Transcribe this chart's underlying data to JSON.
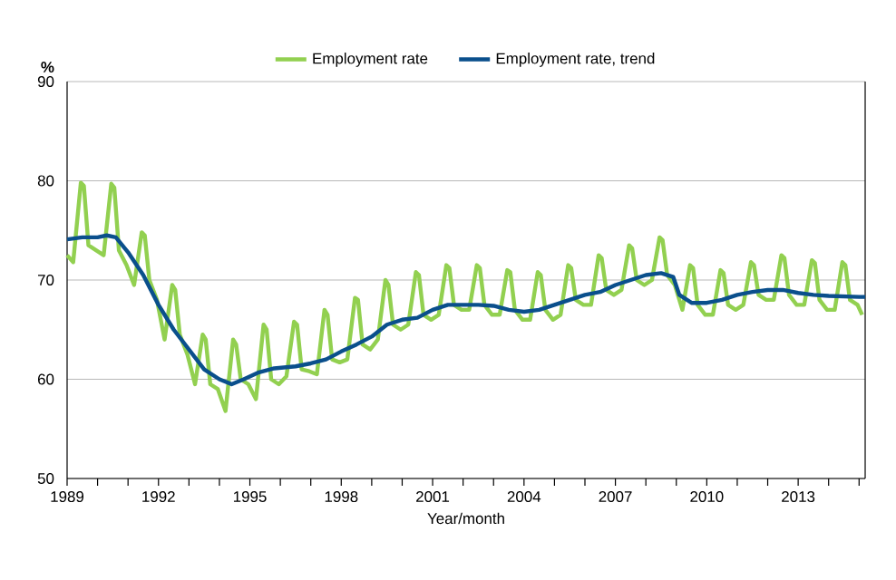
{
  "chart_data": {
    "type": "line",
    "xlabel": "Year/month",
    "ylabel": "%",
    "legend": "top",
    "grid": "y",
    "line_style": "solid",
    "marker": "none",
    "xlim": [
      1989,
      2015.2
    ],
    "ylim": [
      50,
      90
    ],
    "yticks": [
      50,
      60,
      70,
      80,
      90
    ],
    "xticks": [
      1989,
      {
        "value": 1990,
        "label": null
      },
      {
        "value": 1991,
        "label": null
      },
      1992,
      {
        "value": 1993,
        "label": null
      },
      {
        "value": 1994,
        "label": null
      },
      1995,
      {
        "value": 1996,
        "label": null
      },
      {
        "value": 1997,
        "label": null
      },
      1998,
      {
        "value": 1999,
        "label": null
      },
      {
        "value": 2000,
        "label": null
      },
      2001,
      {
        "value": 2002,
        "label": null
      },
      {
        "value": 2003,
        "label": null
      },
      2004,
      {
        "value": 2005,
        "label": null
      },
      {
        "value": 2006,
        "label": null
      },
      2007,
      {
        "value": 2008,
        "label": null
      },
      {
        "value": 2009,
        "label": null
      },
      2010,
      {
        "value": 2011,
        "label": null
      },
      {
        "value": 2012,
        "label": null
      },
      2013,
      {
        "value": 2014,
        "label": null
      },
      {
        "value": 2015,
        "label": null
      }
    ],
    "series": [
      {
        "name": "Employment rate",
        "color": "#92d050",
        "x": [
          1989.0,
          1989.2,
          1989.45,
          1989.55,
          1989.7,
          1989.95,
          1990.2,
          1990.45,
          1990.55,
          1990.7,
          1990.95,
          1991.2,
          1991.45,
          1991.55,
          1991.7,
          1991.95,
          1992.2,
          1992.45,
          1992.55,
          1992.7,
          1992.95,
          1993.2,
          1993.45,
          1993.55,
          1993.7,
          1993.95,
          1994.2,
          1994.45,
          1994.55,
          1994.7,
          1994.95,
          1995.2,
          1995.45,
          1995.55,
          1995.7,
          1995.95,
          1996.2,
          1996.45,
          1996.55,
          1996.7,
          1996.95,
          1997.2,
          1997.45,
          1997.55,
          1997.7,
          1997.95,
          1998.2,
          1998.45,
          1998.55,
          1998.7,
          1998.95,
          1999.2,
          1999.45,
          1999.55,
          1999.7,
          1999.95,
          2000.2,
          2000.45,
          2000.55,
          2000.7,
          2000.95,
          2001.2,
          2001.45,
          2001.55,
          2001.7,
          2001.95,
          2002.2,
          2002.45,
          2002.55,
          2002.7,
          2002.95,
          2003.2,
          2003.45,
          2003.55,
          2003.7,
          2003.95,
          2004.2,
          2004.45,
          2004.55,
          2004.7,
          2004.95,
          2005.2,
          2005.45,
          2005.55,
          2005.7,
          2005.95,
          2006.2,
          2006.45,
          2006.55,
          2006.7,
          2006.95,
          2007.2,
          2007.45,
          2007.55,
          2007.7,
          2007.95,
          2008.2,
          2008.45,
          2008.55,
          2008.7,
          2008.95,
          2009.2,
          2009.45,
          2009.55,
          2009.7,
          2009.95,
          2010.2,
          2010.45,
          2010.55,
          2010.7,
          2010.95,
          2011.2,
          2011.45,
          2011.55,
          2011.7,
          2011.95,
          2012.2,
          2012.45,
          2012.55,
          2012.7,
          2012.95,
          2013.2,
          2013.45,
          2013.55,
          2013.7,
          2013.95,
          2014.2,
          2014.45,
          2014.55,
          2014.7,
          2014.95,
          2015.1
        ],
        "values": [
          72.5,
          71.8,
          79.8,
          79.5,
          73.5,
          73,
          72.5,
          79.7,
          79.3,
          73,
          71.5,
          69.5,
          74.8,
          74.5,
          70,
          68,
          64,
          69.5,
          69,
          64.5,
          62.5,
          59.5,
          64.5,
          64,
          59.5,
          59,
          56.8,
          64,
          63.5,
          60,
          59.5,
          58,
          65.5,
          65,
          60,
          59.5,
          60.3,
          65.8,
          65.5,
          61,
          60.8,
          60.5,
          67,
          66.5,
          62,
          61.7,
          62,
          68.2,
          68,
          63.5,
          63,
          64,
          70,
          69.5,
          65.5,
          65,
          65.5,
          70.8,
          70.5,
          66.5,
          66,
          66.5,
          71.5,
          71.2,
          67.5,
          67,
          67,
          71.5,
          71.2,
          67.5,
          66.5,
          66.5,
          71,
          70.8,
          67,
          66,
          66,
          70.8,
          70.5,
          67,
          66,
          66.5,
          71.5,
          71.2,
          68,
          67.5,
          67.5,
          72.5,
          72.2,
          69,
          68.5,
          69,
          73.5,
          73.2,
          70,
          69.5,
          70,
          74.3,
          74,
          70.5,
          69.5,
          67,
          71.5,
          71.2,
          67.5,
          66.5,
          66.5,
          71,
          70.7,
          67.5,
          67,
          67.5,
          71.8,
          71.5,
          68.5,
          68,
          68,
          72.5,
          72.2,
          68.5,
          67.5,
          67.5,
          72,
          71.7,
          68,
          67,
          67,
          71.8,
          71.5,
          68,
          67.5,
          66.5
        ]
      },
      {
        "name": "Employment rate, trend",
        "color": "#0a4f8c",
        "x": [
          1989.0,
          1989.5,
          1990.0,
          1990.3,
          1990.6,
          1991.0,
          1991.5,
          1992.0,
          1992.5,
          1993.0,
          1993.5,
          1994.0,
          1994.4,
          1994.8,
          1995.3,
          1995.8,
          1996.5,
          1997.0,
          1997.5,
          1998.0,
          1998.5,
          1999.0,
          1999.5,
          2000.0,
          2000.5,
          2001.0,
          2001.5,
          2002.5,
          2003.0,
          2003.5,
          2004.0,
          2004.5,
          2005.0,
          2005.5,
          2006.0,
          2006.5,
          2007.0,
          2007.5,
          2008.0,
          2008.5,
          2008.9,
          2009.1,
          2009.5,
          2010.0,
          2010.5,
          2011.0,
          2011.5,
          2012.0,
          2012.5,
          2013.0,
          2013.5,
          2014.0,
          2015.0,
          2015.2
        ],
        "values": [
          74.1,
          74.3,
          74.3,
          74.5,
          74.3,
          72.8,
          70.5,
          67.5,
          65,
          63,
          61,
          60,
          59.5,
          60,
          60.7,
          61.1,
          61.3,
          61.6,
          62,
          62.8,
          63.5,
          64.3,
          65.5,
          66,
          66.2,
          67,
          67.5,
          67.5,
          67.4,
          67,
          66.8,
          67,
          67.5,
          68,
          68.5,
          68.8,
          69.5,
          70,
          70.5,
          70.7,
          70.3,
          68.5,
          67.7,
          67.7,
          68,
          68.5,
          68.8,
          69,
          69,
          68.7,
          68.5,
          68.4,
          68.3,
          68.3
        ]
      }
    ]
  }
}
